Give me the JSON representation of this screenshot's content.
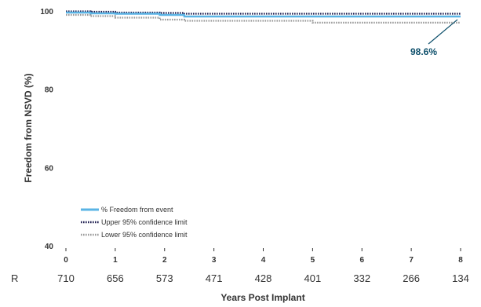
{
  "chart_data": {
    "type": "line",
    "ylabel": "Freedom from NSVD (%)",
    "xlabel": "Years Post Implant",
    "ylim": [
      40,
      100
    ],
    "yticks": [
      40,
      60,
      80,
      100
    ],
    "xlim": [
      0,
      8
    ],
    "xticks": [
      0,
      1,
      2,
      3,
      4,
      5,
      6,
      7,
      8
    ],
    "grid": false,
    "legend_position": "bottom-left",
    "series": [
      {
        "name": "% Freedom from event",
        "color": "#5ab4e5",
        "style": "solid",
        "x": [
          0,
          0.5,
          0.5,
          1.0,
          1.0,
          1.9,
          1.9,
          2.4,
          2.4,
          8.0
        ],
        "y": [
          99.6,
          99.6,
          99.4,
          99.4,
          99.3,
          99.3,
          99.0,
          99.0,
          98.6,
          98.6
        ]
      },
      {
        "name": "Upper 95% confidence limit",
        "color": "#1a1a4e",
        "style": "dotted",
        "x": [
          0,
          0.5,
          0.5,
          1.0,
          1.0,
          1.9,
          1.9,
          2.4,
          2.4,
          8.0
        ],
        "y": [
          99.9,
          99.9,
          99.8,
          99.8,
          99.6,
          99.6,
          99.5,
          99.5,
          99.3,
          99.3
        ]
      },
      {
        "name": "Lower 95% confidence limit",
        "color": "#999999",
        "style": "dotted",
        "x": [
          0,
          0.5,
          0.5,
          1.0,
          1.0,
          1.9,
          1.9,
          2.4,
          2.4,
          5.0,
          5.0,
          8.0
        ],
        "y": [
          99.0,
          99.0,
          98.7,
          98.7,
          98.3,
          98.3,
          97.8,
          97.8,
          97.5,
          97.5,
          97.0,
          97.0
        ]
      }
    ],
    "annotation": {
      "text": "98.6%",
      "x": 8,
      "y": 98.6
    },
    "risk_table": {
      "label": "R",
      "values": [
        "710",
        "656",
        "573",
        "471",
        "428",
        "401",
        "332",
        "266",
        "134"
      ]
    }
  }
}
